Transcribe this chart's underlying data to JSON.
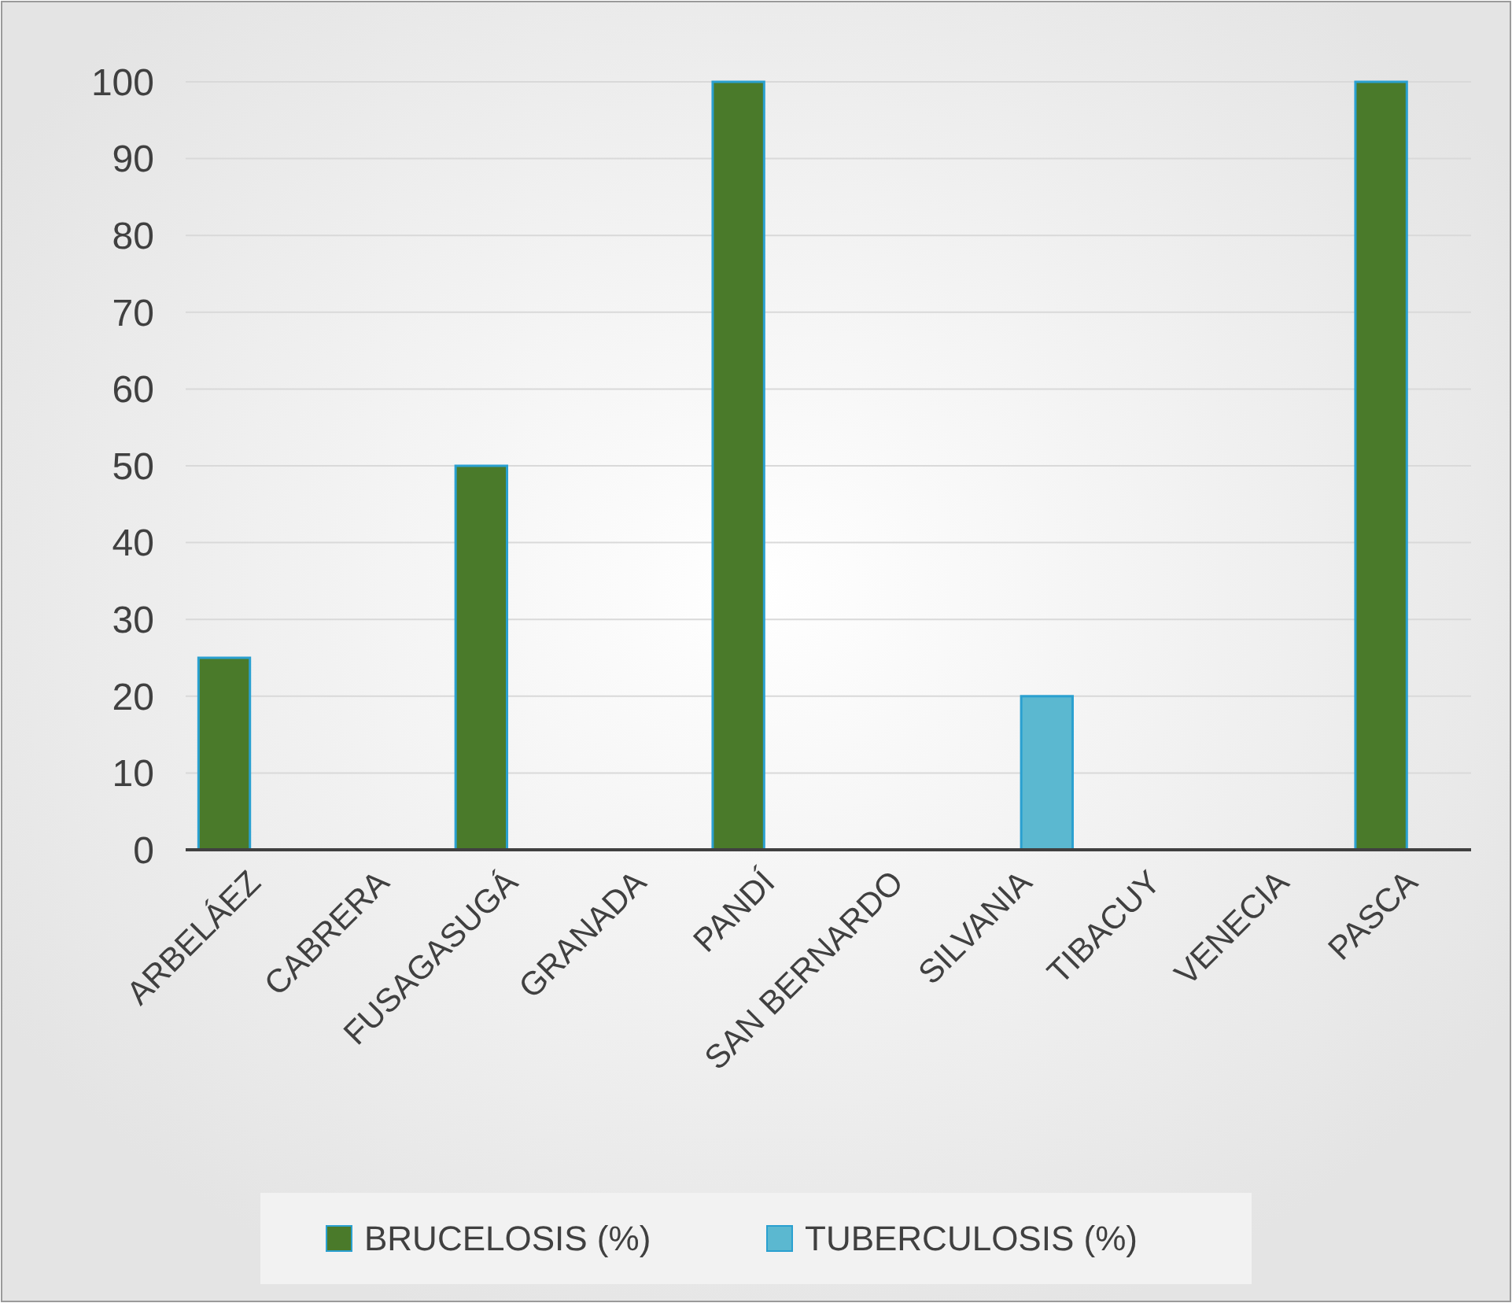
{
  "chart_data": {
    "type": "bar",
    "categories": [
      "ARBELÁEZ",
      "CABRERA",
      "FUSAGASUGÁ",
      "GRANADA",
      "PANDÍ",
      "SAN BERNARDO",
      "SILVANIA",
      "TIBACUY",
      "VENECIA",
      "PASCA"
    ],
    "series": [
      {
        "name": "BRUCELOSIS (%)",
        "color": "#4a7a2a",
        "values": [
          25,
          0,
          50,
          0,
          100,
          0,
          0,
          0,
          0,
          100
        ]
      },
      {
        "name": "TUBERCULOSIS (%)",
        "color": "#5bb8d0",
        "values": [
          0,
          0,
          0,
          0,
          0,
          0,
          20,
          0,
          0,
          0
        ]
      }
    ],
    "ylim": [
      0,
      100
    ],
    "yticks": [
      0,
      10,
      20,
      30,
      40,
      50,
      60,
      70,
      80,
      90,
      100
    ],
    "grid": "y",
    "legend": "bottom"
  }
}
